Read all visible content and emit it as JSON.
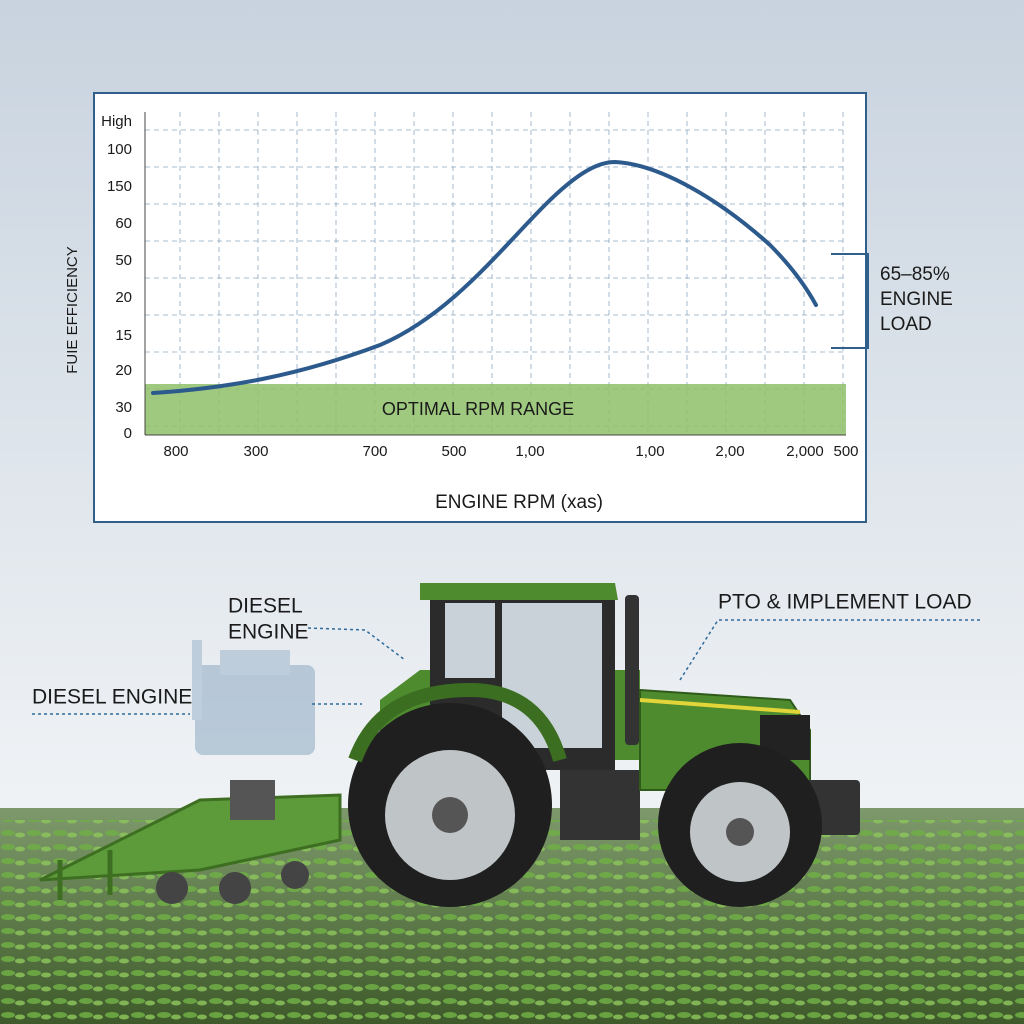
{
  "chart": {
    "y_axis_title": "FUIE EFFICIENCY",
    "y_labels": [
      "High",
      "100",
      "150",
      "60",
      "50",
      "20",
      "15",
      "20",
      "30",
      "0"
    ],
    "x_labels": [
      "800",
      "300",
      "700",
      "500",
      "1,00",
      "1,00",
      "2,00",
      "2,000",
      "500"
    ],
    "x_axis_title": "ENGINE RPM (xas)",
    "band_label": "OPTIMAL RPM RANGE",
    "bracket_label": [
      "65–85%",
      "ENGINE",
      "LOAD"
    ]
  },
  "callouts": {
    "diesel_engine_top": [
      "DIESEL",
      "ENGINE"
    ],
    "diesel_engine_left": "DIESEL ENGINE",
    "pto_load": "PTO & IMPLEMENT LOAD"
  }
}
